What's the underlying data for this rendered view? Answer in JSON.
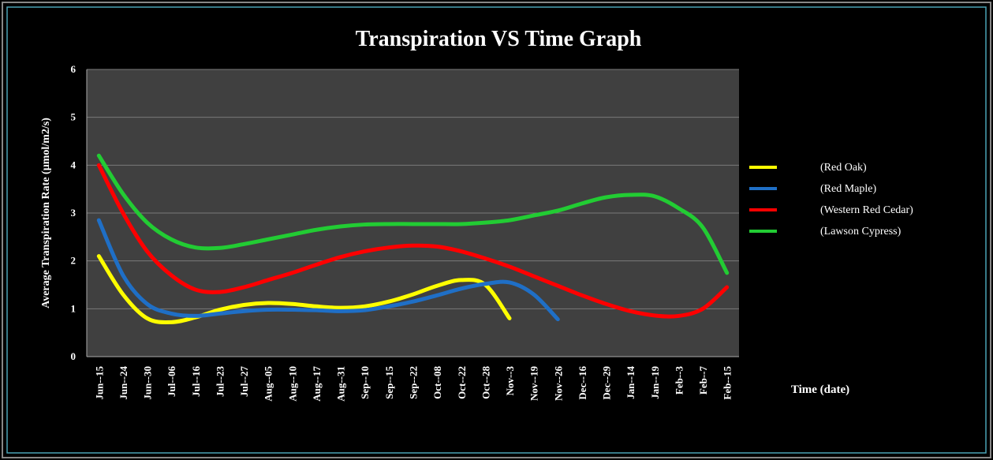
{
  "chart_data": {
    "type": "line",
    "title": "Transpiration VS Time Graph",
    "y_label": "Average Transpiration Rate  (µmol/m2/s)",
    "x_label": "Time (date)",
    "categories": [
      "Jun--15",
      "Jun--24",
      "Jun--30",
      "Jul--06",
      "Jul--16",
      "Jul--23",
      "Jul--27",
      "Aug--05",
      "Aug--10",
      "Aug--17",
      "Aug--31",
      "Sep--10",
      "Sep--15",
      "Sep--22",
      "Oct--08",
      "Oct--22",
      "Oct--28",
      "Nov--3",
      "Nov--19",
      "Nov--26",
      "Dec--16",
      "Dec--29",
      "Jan--14",
      "Jan--19",
      "Feb--3",
      "Feb--7",
      "Feb--15"
    ],
    "series": [
      {
        "name": "(Red Oak)",
        "color": "#ffff00",
        "values": [
          2.1,
          1.3,
          0.8,
          0.72,
          0.82,
          0.98,
          1.08,
          1.12,
          1.1,
          1.05,
          1.02,
          1.05,
          1.15,
          1.3,
          1.48,
          1.6,
          1.5,
          0.8,
          null,
          null,
          null,
          null,
          null,
          null,
          null,
          null,
          null
        ]
      },
      {
        "name": "(Red Maple)",
        "color": "#1f6fc6",
        "values": [
          2.85,
          1.7,
          1.1,
          0.9,
          0.85,
          0.9,
          0.95,
          0.98,
          0.98,
          0.97,
          0.95,
          0.97,
          1.05,
          1.15,
          1.28,
          1.42,
          1.52,
          1.55,
          1.3,
          0.78,
          null,
          null,
          null,
          null,
          null,
          null,
          null
        ]
      },
      {
        "name": "(Western Red Cedar)",
        "color": "#ff0000",
        "values": [
          4.0,
          3.0,
          2.2,
          1.7,
          1.4,
          1.35,
          1.45,
          1.6,
          1.75,
          1.92,
          2.08,
          2.2,
          2.28,
          2.32,
          2.3,
          2.2,
          2.05,
          1.88,
          1.68,
          1.48,
          1.28,
          1.1,
          0.95,
          0.86,
          0.85,
          1.0,
          1.45
        ]
      },
      {
        "name": "(Lawson Cypress)",
        "color": "#22cc33",
        "values": [
          4.2,
          3.4,
          2.8,
          2.45,
          2.28,
          2.27,
          2.35,
          2.45,
          2.55,
          2.65,
          2.72,
          2.76,
          2.77,
          2.77,
          2.77,
          2.77,
          2.8,
          2.85,
          2.95,
          3.05,
          3.2,
          3.33,
          3.38,
          3.35,
          3.1,
          2.7,
          1.75
        ]
      }
    ],
    "ylim": [
      0,
      6
    ],
    "yticks": [
      0,
      1,
      2,
      3,
      4,
      5,
      6
    ],
    "grid": true,
    "legend": "right"
  }
}
